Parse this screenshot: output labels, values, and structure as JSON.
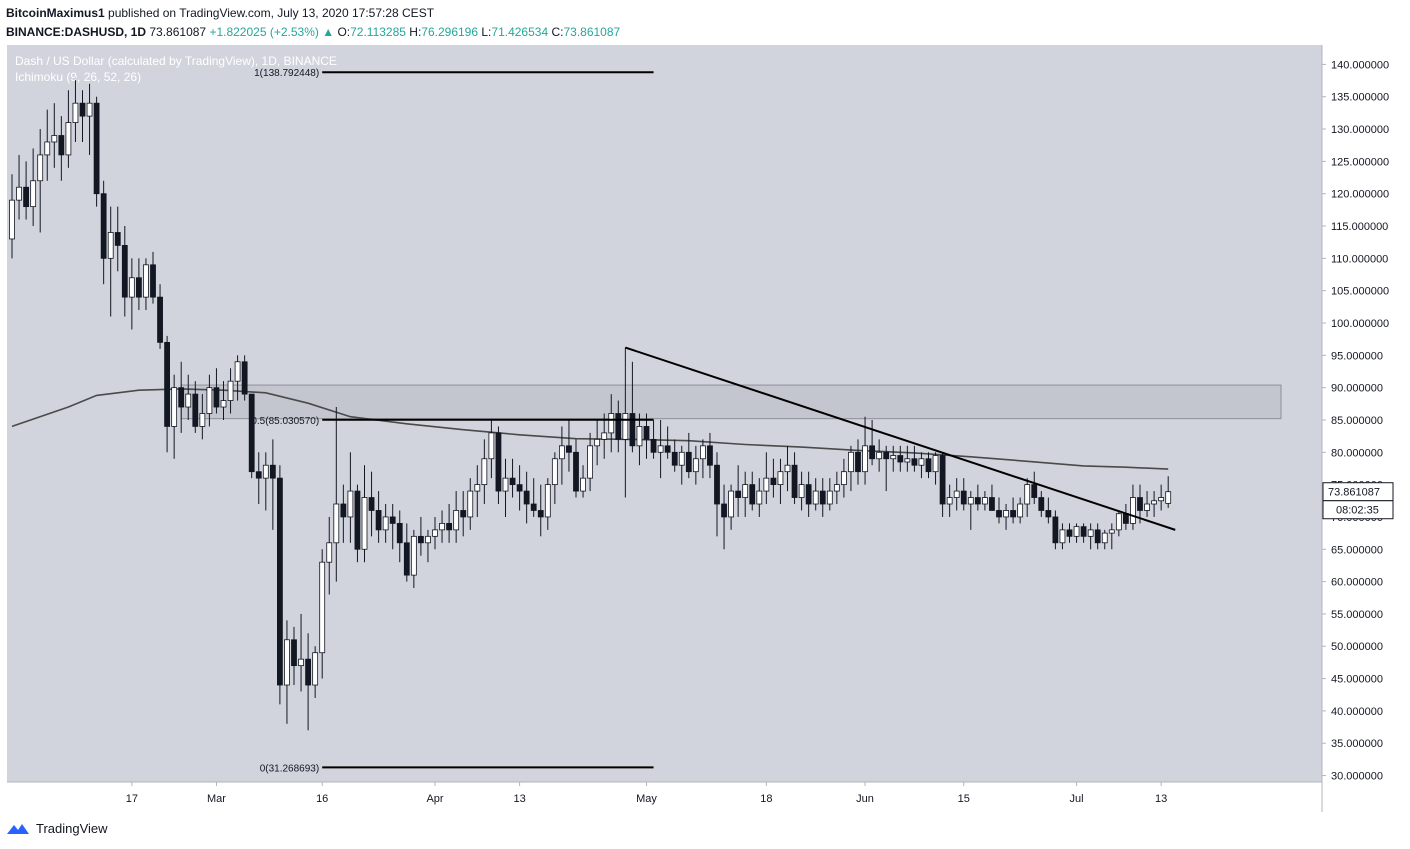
{
  "header": {
    "author": "BitcoinMaximus1",
    "published": " published on TradingView.com, July 13, 2020 17:57:28 CEST",
    "symbol": "BINANCE:DASHUSD, 1D",
    "last": "73.861087",
    "change": "+1.822025 (+2.53%)",
    "ohlc_o_label": "O:",
    "ohlc_o": "72.113285",
    "ohlc_h_label": "H:",
    "ohlc_h": "76.296196",
    "ohlc_l_label": "L:",
    "ohlc_l": "71.426534",
    "ohlc_c_label": "C:",
    "ohlc_c": "73.861087"
  },
  "footer": {
    "brand": "TradingView"
  },
  "colors": {
    "pane_bg": "#d1d4dc",
    "candle_up": "#ffffff",
    "candle_down": "#131722",
    "ma_line": "#4a4a4a",
    "zone_fill": "#c3c6cf",
    "accent_up": "#26a69a"
  },
  "chart_data": {
    "type": "candlestick",
    "title": "Dash / US Dollar (calculated by TradingView), 1D, BINANCE",
    "indicator": "Ichimoku (9, 26, 52, 26)",
    "ylim": [
      29,
      143
    ],
    "y_ticks": [
      "140.000000",
      "135.000000",
      "130.000000",
      "125.000000",
      "120.000000",
      "115.000000",
      "110.000000",
      "105.000000",
      "100.000000",
      "95.000000",
      "90.000000",
      "85.000000",
      "80.000000",
      "75.000000",
      "70.000000",
      "65.000000",
      "60.000000",
      "55.000000",
      "50.000000",
      "45.000000",
      "40.000000",
      "35.000000",
      "30.000000"
    ],
    "x_ticks": [
      {
        "label": "17",
        "day": 17
      },
      {
        "label": "Mar",
        "day": 29
      },
      {
        "label": "16",
        "day": 44
      },
      {
        "label": "Apr",
        "day": 60
      },
      {
        "label": "13",
        "day": 72
      },
      {
        "label": "May",
        "day": 90
      },
      {
        "label": "18",
        "day": 107
      },
      {
        "label": "Jun",
        "day": 121
      },
      {
        "label": "15",
        "day": 135
      },
      {
        "label": "Jul",
        "day": 151
      },
      {
        "label": "13",
        "day": 163
      }
    ],
    "price_label": "73.861087",
    "countdown_label": "08:02:35",
    "fib_levels": [
      {
        "label": "1(138.792448)",
        "value": 138.792448,
        "from_day": 44,
        "to_day": 91
      },
      {
        "label": "0.5(85.030570)",
        "value": 85.03057,
        "from_day": 44,
        "to_day": 91
      },
      {
        "label": "0(31.268693)",
        "value": 31.268693,
        "from_day": 44,
        "to_day": 91
      }
    ],
    "resistance_zone": {
      "low": 85.2,
      "high": 90.4,
      "from_day": 24,
      "to_day": 180
    },
    "trendline": {
      "from": {
        "day": 87,
        "price": 96.2
      },
      "to": {
        "day": 165,
        "price": 68.0
      }
    },
    "moving_average": {
      "days": [
        0,
        8,
        12,
        18,
        24,
        30,
        36,
        42,
        48,
        56,
        64,
        72,
        80,
        88,
        96,
        104,
        112,
        120,
        128,
        136,
        144,
        152,
        158,
        164
      ],
      "values": [
        84,
        87,
        88.8,
        89.6,
        89.8,
        89.6,
        89.2,
        87.6,
        85.5,
        84.4,
        83.5,
        82.7,
        82.1,
        82,
        81.8,
        81.2,
        80.8,
        80.3,
        79.9,
        79.3,
        78.6,
        77.9,
        77.7,
        77.4
      ]
    },
    "candles": [
      [
        0,
        113.0,
        123.0,
        110.0,
        119.0
      ],
      [
        1,
        119.0,
        126.0,
        116.0,
        121.0
      ],
      [
        2,
        121.0,
        125.0,
        116.0,
        118.0
      ],
      [
        3,
        118.0,
        127.0,
        115.0,
        122.0
      ],
      [
        4,
        122.0,
        130.0,
        114.0,
        126.0
      ],
      [
        5,
        126.0,
        133.0,
        122.0,
        128.0
      ],
      [
        6,
        128.0,
        134.0,
        124.0,
        129.0
      ],
      [
        7,
        129.0,
        132.0,
        122.0,
        126.0
      ],
      [
        8,
        126.0,
        136.0,
        124.0,
        131.0
      ],
      [
        9,
        131.0,
        138.0,
        128.0,
        134.0
      ],
      [
        10,
        134.0,
        136.0,
        128.0,
        132.0
      ],
      [
        11,
        132.0,
        137.0,
        126.0,
        134.0
      ],
      [
        12,
        134.0,
        135.0,
        118.0,
        120.0
      ],
      [
        13,
        120.0,
        122.0,
        106.0,
        110.0
      ],
      [
        14,
        110.0,
        118.0,
        101.0,
        114.0
      ],
      [
        15,
        114.0,
        118.0,
        108.0,
        112.0
      ],
      [
        16,
        112.0,
        115.0,
        101.0,
        104.0
      ],
      [
        17,
        104.0,
        110.0,
        99.0,
        107.0
      ],
      [
        18,
        107.0,
        110.0,
        102.0,
        104.0
      ],
      [
        19,
        104.0,
        110.0,
        102.0,
        109.0
      ],
      [
        20,
        109.0,
        111.0,
        103.0,
        104.0
      ],
      [
        21,
        104.0,
        106.0,
        96.0,
        97.0
      ],
      [
        22,
        97.0,
        98.0,
        80.0,
        84.0
      ],
      [
        23,
        84.0,
        92.0,
        79.0,
        90.0
      ],
      [
        24,
        90.0,
        94.0,
        83.0,
        87.0
      ],
      [
        25,
        87.0,
        92.0,
        85.0,
        89.0
      ],
      [
        26,
        89.0,
        91.0,
        83.0,
        84.0
      ],
      [
        27,
        84.0,
        89.0,
        82.0,
        86.0
      ],
      [
        28,
        86.0,
        92.0,
        84.0,
        90.0
      ],
      [
        29,
        90.0,
        93.0,
        86.0,
        87.0
      ],
      [
        30,
        87.0,
        91.0,
        85.0,
        88.0
      ],
      [
        31,
        88.0,
        93.0,
        86.0,
        91.0
      ],
      [
        32,
        91.0,
        95.0,
        88.0,
        94.0
      ],
      [
        33,
        94.0,
        95.0,
        88.0,
        89.0
      ],
      [
        34,
        89.0,
        89.0,
        76.0,
        77.0
      ],
      [
        35,
        77.0,
        80.0,
        72.0,
        76.0
      ],
      [
        36,
        76.0,
        80.0,
        71.0,
        78.0
      ],
      [
        37,
        78.0,
        82.0,
        68.0,
        76.0
      ],
      [
        38,
        76.0,
        78.0,
        41.0,
        44.0
      ],
      [
        39,
        44.0,
        54.0,
        38.0,
        51.0
      ],
      [
        40,
        51.0,
        53.0,
        44.0,
        47.0
      ],
      [
        41,
        47.0,
        55.0,
        43.0,
        48.0
      ],
      [
        42,
        48.0,
        52.0,
        37.0,
        44.0
      ],
      [
        43,
        44.0,
        50.0,
        42.0,
        49.0
      ],
      [
        44,
        49.0,
        65.0,
        45.0,
        63.0
      ],
      [
        45,
        63.0,
        70.0,
        58.0,
        66.0
      ],
      [
        46,
        66.0,
        87.0,
        60.0,
        72.0
      ],
      [
        47,
        72.0,
        75.0,
        66.0,
        70.0
      ],
      [
        48,
        70.0,
        80.0,
        66.0,
        74.0
      ],
      [
        49,
        74.0,
        75.0,
        63.0,
        65.0
      ],
      [
        50,
        65.0,
        78.0,
        63.0,
        73.0
      ],
      [
        51,
        73.0,
        77.0,
        67.0,
        71.0
      ],
      [
        52,
        71.0,
        74.0,
        66.0,
        68.0
      ],
      [
        53,
        68.0,
        72.0,
        66.0,
        70.0
      ],
      [
        54,
        70.0,
        72.0,
        65.0,
        69.0
      ],
      [
        55,
        69.0,
        71.0,
        63.0,
        66.0
      ],
      [
        56,
        66.0,
        69.0,
        60.0,
        61.0
      ],
      [
        57,
        61.0,
        68.0,
        59.0,
        67.0
      ],
      [
        58,
        67.0,
        70.0,
        64.0,
        66.0
      ],
      [
        59,
        66.0,
        68.0,
        63.0,
        67.0
      ],
      [
        60,
        67.0,
        70.0,
        65.0,
        68.0
      ],
      [
        61,
        68.0,
        71.0,
        66.0,
        69.0
      ],
      [
        62,
        69.0,
        72.0,
        66.0,
        68.0
      ],
      [
        63,
        68.0,
        74.0,
        66.0,
        71.0
      ],
      [
        64,
        71.0,
        74.0,
        67.0,
        70.0
      ],
      [
        65,
        70.0,
        76.0,
        68.0,
        74.0
      ],
      [
        66,
        74.0,
        78.0,
        70.0,
        75.0
      ],
      [
        67,
        75.0,
        82.0,
        72.0,
        79.0
      ],
      [
        68,
        79.0,
        85.0,
        76.0,
        83.0
      ],
      [
        69,
        83.0,
        84.0,
        72.0,
        74.0
      ],
      [
        70,
        74.0,
        79.0,
        70.0,
        76.0
      ],
      [
        71,
        76.0,
        79.0,
        73.0,
        75.0
      ],
      [
        72,
        75.0,
        78.0,
        71.0,
        74.0
      ],
      [
        73,
        74.0,
        77.0,
        69.0,
        72.0
      ],
      [
        74,
        72.0,
        76.0,
        70.0,
        71.0
      ],
      [
        75,
        71.0,
        75.0,
        67.0,
        70.0
      ],
      [
        76,
        70.0,
        76.0,
        68.0,
        75.0
      ],
      [
        77,
        75.0,
        80.0,
        72.0,
        79.0
      ],
      [
        78,
        79.0,
        84.0,
        75.0,
        81.0
      ],
      [
        79,
        81.0,
        85.0,
        77.0,
        80.0
      ],
      [
        80,
        80.0,
        82.0,
        73.0,
        74.0
      ],
      [
        81,
        74.0,
        78.0,
        73.0,
        76.0
      ],
      [
        82,
        76.0,
        83.0,
        74.0,
        81.0
      ],
      [
        83,
        81.0,
        85.0,
        78.0,
        82.0
      ],
      [
        84,
        82.0,
        86.0,
        79.0,
        83.0
      ],
      [
        85,
        83.0,
        89.0,
        80.0,
        86.0
      ],
      [
        86,
        86.0,
        88.0,
        80.0,
        82.0
      ],
      [
        87,
        82.0,
        96.2,
        73.0,
        86.0
      ],
      [
        88,
        86.0,
        94.0,
        80.0,
        81.0
      ],
      [
        89,
        81.0,
        86.0,
        78.0,
        84.0
      ],
      [
        90,
        84.0,
        86.0,
        79.0,
        82.0
      ],
      [
        91,
        82.0,
        85.0,
        79.0,
        80.0
      ],
      [
        92,
        80.0,
        85.0,
        76.0,
        81.0
      ],
      [
        93,
        81.0,
        84.0,
        79.0,
        80.0
      ],
      [
        94,
        80.0,
        82.0,
        77.0,
        78.0
      ],
      [
        95,
        78.0,
        81.0,
        75.0,
        80.0
      ],
      [
        96,
        80.0,
        83.0,
        76.0,
        77.0
      ],
      [
        97,
        77.0,
        81.0,
        75.0,
        79.0
      ],
      [
        98,
        79.0,
        82.0,
        76.0,
        81.0
      ],
      [
        99,
        81.0,
        83.0,
        76.0,
        78.0
      ],
      [
        100,
        78.0,
        80.0,
        67.0,
        72.0
      ],
      [
        101,
        72.0,
        75.0,
        65.0,
        70.0
      ],
      [
        102,
        70.0,
        75.0,
        68.0,
        74.0
      ],
      [
        103,
        74.0,
        78.0,
        70.0,
        73.0
      ],
      [
        104,
        73.0,
        77.0,
        70.0,
        75.0
      ],
      [
        105,
        75.0,
        77.0,
        71.0,
        72.0
      ],
      [
        106,
        72.0,
        76.0,
        70.0,
        74.0
      ],
      [
        107,
        74.0,
        80.0,
        72.0,
        76.0
      ],
      [
        108,
        76.0,
        79.0,
        73.0,
        75.0
      ],
      [
        109,
        75.0,
        79.0,
        72.0,
        77.0
      ],
      [
        110,
        77.0,
        81.0,
        74.0,
        78.0
      ],
      [
        111,
        78.0,
        80.0,
        72.0,
        73.0
      ],
      [
        112,
        73.0,
        77.0,
        71.0,
        75.0
      ],
      [
        113,
        75.0,
        77.0,
        70.0,
        72.0
      ],
      [
        114,
        72.0,
        76.0,
        71.0,
        74.0
      ],
      [
        115,
        74.0,
        76.0,
        70.0,
        72.0
      ],
      [
        116,
        72.0,
        76.0,
        71.0,
        74.0
      ],
      [
        117,
        74.0,
        77.0,
        72.0,
        75.0
      ],
      [
        118,
        75.0,
        79.0,
        73.0,
        77.0
      ],
      [
        119,
        77.0,
        81.0,
        74.0,
        80.0
      ],
      [
        120,
        80.0,
        82.0,
        75.0,
        77.0
      ],
      [
        121,
        77.0,
        85.5,
        75.0,
        81.0
      ],
      [
        122,
        81.0,
        85.0,
        78.0,
        79.0
      ],
      [
        123,
        79.0,
        82.0,
        77.0,
        80.0
      ],
      [
        124,
        80.0,
        81.0,
        74.0,
        79.0
      ],
      [
        125,
        79.0,
        81.0,
        77.0,
        79.5
      ],
      [
        126,
        79.5,
        81.0,
        77.0,
        78.5
      ],
      [
        127,
        78.5,
        81.0,
        77.0,
        79.0
      ],
      [
        128,
        79.0,
        81.0,
        77.0,
        78.0
      ],
      [
        129,
        78.0,
        80.0,
        76.0,
        79.0
      ],
      [
        130,
        79.0,
        80.0,
        76.0,
        77.0
      ],
      [
        131,
        77.0,
        80.0,
        75.0,
        79.5
      ],
      [
        132,
        79.5,
        80.0,
        70.0,
        72.0
      ],
      [
        133,
        72.0,
        75.0,
        70.0,
        73.0
      ],
      [
        134,
        73.0,
        76.0,
        71.0,
        74.0
      ],
      [
        135,
        74.0,
        76.0,
        71.0,
        72.0
      ],
      [
        136,
        72.0,
        74.0,
        68.0,
        73.0
      ],
      [
        137,
        73.0,
        75.0,
        71.0,
        72.0
      ],
      [
        138,
        72.0,
        74.0,
        71.0,
        73.0
      ],
      [
        139,
        73.0,
        75.0,
        71.0,
        71.0
      ],
      [
        140,
        71.0,
        73.0,
        69.0,
        70.0
      ],
      [
        141,
        70.0,
        72.0,
        68.0,
        71.0
      ],
      [
        142,
        71.0,
        73.0,
        69.0,
        70.0
      ],
      [
        143,
        70.0,
        73.0,
        69.0,
        72.0
      ],
      [
        144,
        72.0,
        76.0,
        70.0,
        75.0
      ],
      [
        145,
        75.0,
        77.0,
        72.0,
        73.0
      ],
      [
        146,
        73.0,
        74.0,
        70.0,
        71.0
      ],
      [
        147,
        71.0,
        73.0,
        69.0,
        70.0
      ],
      [
        148,
        70.0,
        71.0,
        65.0,
        66.0
      ],
      [
        149,
        66.0,
        69.0,
        65.0,
        68.0
      ],
      [
        150,
        68.0,
        69.0,
        66.0,
        67.0
      ],
      [
        151,
        67.0,
        69.0,
        66.0,
        68.5
      ],
      [
        152,
        68.5,
        69.0,
        66.0,
        67.0
      ],
      [
        153,
        67.0,
        69.0,
        65.0,
        68.0
      ],
      [
        154,
        68.0,
        69.0,
        65.0,
        66.0
      ],
      [
        155,
        66.0,
        68.0,
        65.0,
        67.5
      ],
      [
        156,
        67.5,
        69.0,
        65.0,
        68.0
      ],
      [
        157,
        68.0,
        71.0,
        67.0,
        70.5
      ],
      [
        158,
        70.5,
        72.0,
        68.0,
        69.0
      ],
      [
        159,
        69.0,
        75.0,
        68.0,
        73.0
      ],
      [
        160,
        73.0,
        75.0,
        69.0,
        71.0
      ],
      [
        161,
        71.0,
        74.0,
        70.0,
        72.0
      ],
      [
        162,
        72.0,
        74.0,
        70.0,
        72.5
      ],
      [
        163,
        72.5,
        75.0,
        71.0,
        73.0
      ],
      [
        164,
        72.1,
        76.3,
        71.4,
        73.9
      ]
    ]
  }
}
